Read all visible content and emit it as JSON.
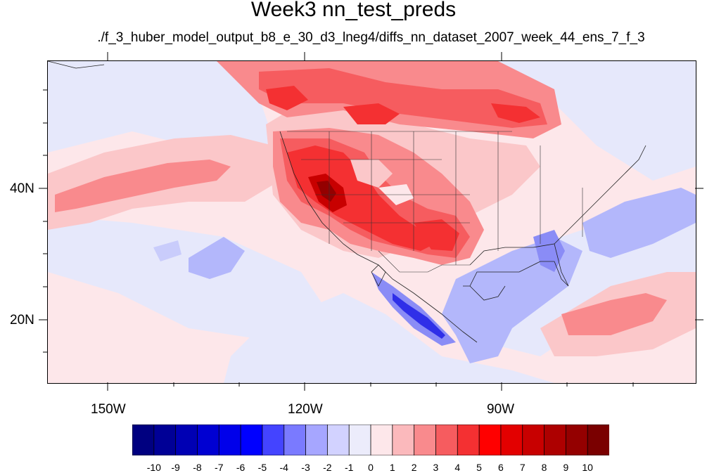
{
  "title": "Week3 nn_test_preds",
  "subtitle": "./f_3_huber_model_output_b8_e_30_d3_lneg4/diffs_nn_dataset_2007_week_44_ens_7_f_3",
  "axes": {
    "lat_labels": [
      "40N",
      "20N"
    ],
    "lon_labels": [
      "150W",
      "120W",
      "90W"
    ]
  },
  "colorbar": {
    "labels": [
      "-10",
      "-9",
      "-8",
      "-7",
      "-6",
      "-5",
      "-4",
      "-3",
      "-2",
      "-1",
      "0",
      "1",
      "2",
      "3",
      "4",
      "5",
      "6",
      "7",
      "8",
      "9",
      "10"
    ],
    "colors": [
      "#000080",
      "#000096",
      "#0000b4",
      "#0000d2",
      "#0000ea",
      "#0000ff",
      "#4444ff",
      "#7a7aff",
      "#a6a6ff",
      "#d2d2ff",
      "#ececfb",
      "#fde7ea",
      "#fbb9bc",
      "#f98a8d",
      "#f65c5f",
      "#f43032",
      "#ff0000",
      "#e30000",
      "#c80000",
      "#ad0000",
      "#940000",
      "#7a0000"
    ]
  },
  "legend_colors": {
    "background_light": "#fde7ea",
    "light_blue": "#e6e8fb",
    "medium_blue": "#b3b7fb",
    "dark_blue": "#2f2fe8",
    "light_red": "#fbc7c9",
    "medium_red": "#f98a8d",
    "strong_red": "#f43032",
    "dark_red": "#940000"
  }
}
